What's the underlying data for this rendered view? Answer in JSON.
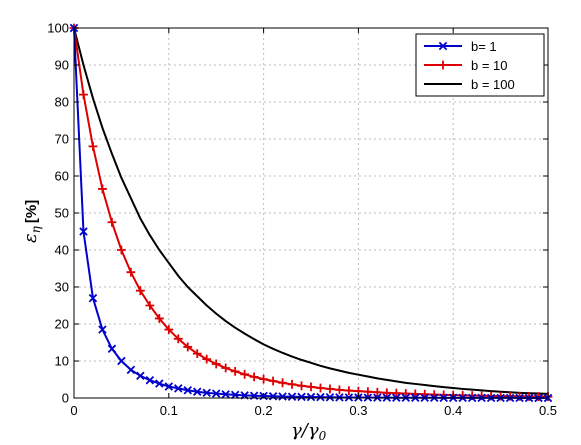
{
  "chart_data": {
    "type": "line",
    "title": "",
    "xlabel": "γ/γ₀",
    "ylabel": "ε_η [%]",
    "ylabel_symbol": "ε",
    "ylabel_sub": "η",
    "ylabel_unit": "[%]",
    "xlabel_parts": {
      "a": "γ",
      "b": "/γ",
      "sub": "0"
    },
    "xlim": [
      0,
      0.5
    ],
    "ylim": [
      0,
      100
    ],
    "xticks": [
      "0",
      "0.1",
      "0.2",
      "0.3",
      "0.4",
      "0.5"
    ],
    "yticks": [
      "0",
      "10",
      "20",
      "30",
      "40",
      "50",
      "60",
      "70",
      "80",
      "90",
      "100"
    ],
    "grid": true,
    "legend_position": "top-right",
    "series": [
      {
        "name": "b= 1",
        "color": "#0000cc",
        "marker": "x",
        "x": [
          0,
          0.01,
          0.02,
          0.03,
          0.04,
          0.05,
          0.06,
          0.07,
          0.08,
          0.09,
          0.1,
          0.11,
          0.12,
          0.13,
          0.14,
          0.15,
          0.16,
          0.17,
          0.18,
          0.19,
          0.2,
          0.21,
          0.22,
          0.23,
          0.24,
          0.25,
          0.26,
          0.27,
          0.28,
          0.29,
          0.3,
          0.31,
          0.32,
          0.33,
          0.34,
          0.35,
          0.36,
          0.37,
          0.38,
          0.39,
          0.4,
          0.41,
          0.42,
          0.43,
          0.44,
          0.45,
          0.46,
          0.47,
          0.48,
          0.49,
          0.5
        ],
        "y": [
          100,
          45,
          27,
          18.5,
          13.3,
          10,
          7.6,
          6,
          4.8,
          3.9,
          3.1,
          2.6,
          2.1,
          1.7,
          1.4,
          1.2,
          1.0,
          0.85,
          0.72,
          0.62,
          0.53,
          0.46,
          0.4,
          0.35,
          0.3,
          0.26,
          0.23,
          0.2,
          0.17,
          0.15,
          0.13,
          0.12,
          0.1,
          0.09,
          0.08,
          0.07,
          0.06,
          0.05,
          0.05,
          0.04,
          0.04,
          0.03,
          0.03,
          0.03,
          0.02,
          0.02,
          0.02,
          0.02,
          0.01,
          0.01,
          0.01
        ]
      },
      {
        "name": "b = 10",
        "color": "#dd0000",
        "marker": "+",
        "x": [
          0,
          0.01,
          0.02,
          0.03,
          0.04,
          0.05,
          0.06,
          0.07,
          0.08,
          0.09,
          0.1,
          0.11,
          0.12,
          0.13,
          0.14,
          0.15,
          0.16,
          0.17,
          0.18,
          0.19,
          0.2,
          0.21,
          0.22,
          0.23,
          0.24,
          0.25,
          0.26,
          0.27,
          0.28,
          0.29,
          0.3,
          0.31,
          0.32,
          0.33,
          0.34,
          0.35,
          0.36,
          0.37,
          0.38,
          0.39,
          0.4,
          0.41,
          0.42,
          0.43,
          0.44,
          0.45,
          0.46,
          0.47,
          0.48,
          0.49,
          0.5
        ],
        "y": [
          100,
          82,
          68,
          56.5,
          47.5,
          40,
          34,
          29,
          25,
          21.5,
          18.5,
          16,
          13.8,
          12,
          10.5,
          9.2,
          8.1,
          7.2,
          6.4,
          5.7,
          5.1,
          4.6,
          4.1,
          3.7,
          3.3,
          3.0,
          2.7,
          2.45,
          2.2,
          2.0,
          1.85,
          1.7,
          1.55,
          1.4,
          1.3,
          1.2,
          1.1,
          1.0,
          0.92,
          0.85,
          0.78,
          0.72,
          0.66,
          0.61,
          0.56,
          0.52,
          0.48,
          0.45,
          0.42,
          0.39,
          0.36
        ]
      },
      {
        "name": "b = 100",
        "color": "#000000",
        "marker": "none",
        "x": [
          0,
          0.01,
          0.02,
          0.03,
          0.04,
          0.05,
          0.06,
          0.07,
          0.08,
          0.09,
          0.1,
          0.11,
          0.12,
          0.13,
          0.14,
          0.15,
          0.16,
          0.17,
          0.18,
          0.19,
          0.2,
          0.21,
          0.22,
          0.23,
          0.24,
          0.25,
          0.26,
          0.27,
          0.28,
          0.29,
          0.3,
          0.31,
          0.32,
          0.33,
          0.34,
          0.35,
          0.36,
          0.37,
          0.38,
          0.39,
          0.4,
          0.41,
          0.42,
          0.43,
          0.44,
          0.45,
          0.46,
          0.47,
          0.48,
          0.49,
          0.5
        ],
        "y": [
          100,
          90,
          81,
          73,
          66,
          59.5,
          54,
          48.5,
          44,
          40,
          36.5,
          33,
          30,
          27.5,
          25,
          22.8,
          20.8,
          19,
          17.4,
          15.9,
          14.5,
          13.3,
          12.2,
          11.2,
          10.3,
          9.5,
          8.7,
          8.0,
          7.4,
          6.8,
          6.3,
          5.8,
          5.3,
          4.9,
          4.5,
          4.1,
          3.8,
          3.5,
          3.2,
          2.95,
          2.7,
          2.45,
          2.25,
          2.05,
          1.85,
          1.7,
          1.55,
          1.4,
          1.3,
          1.2,
          1.1
        ]
      }
    ]
  }
}
